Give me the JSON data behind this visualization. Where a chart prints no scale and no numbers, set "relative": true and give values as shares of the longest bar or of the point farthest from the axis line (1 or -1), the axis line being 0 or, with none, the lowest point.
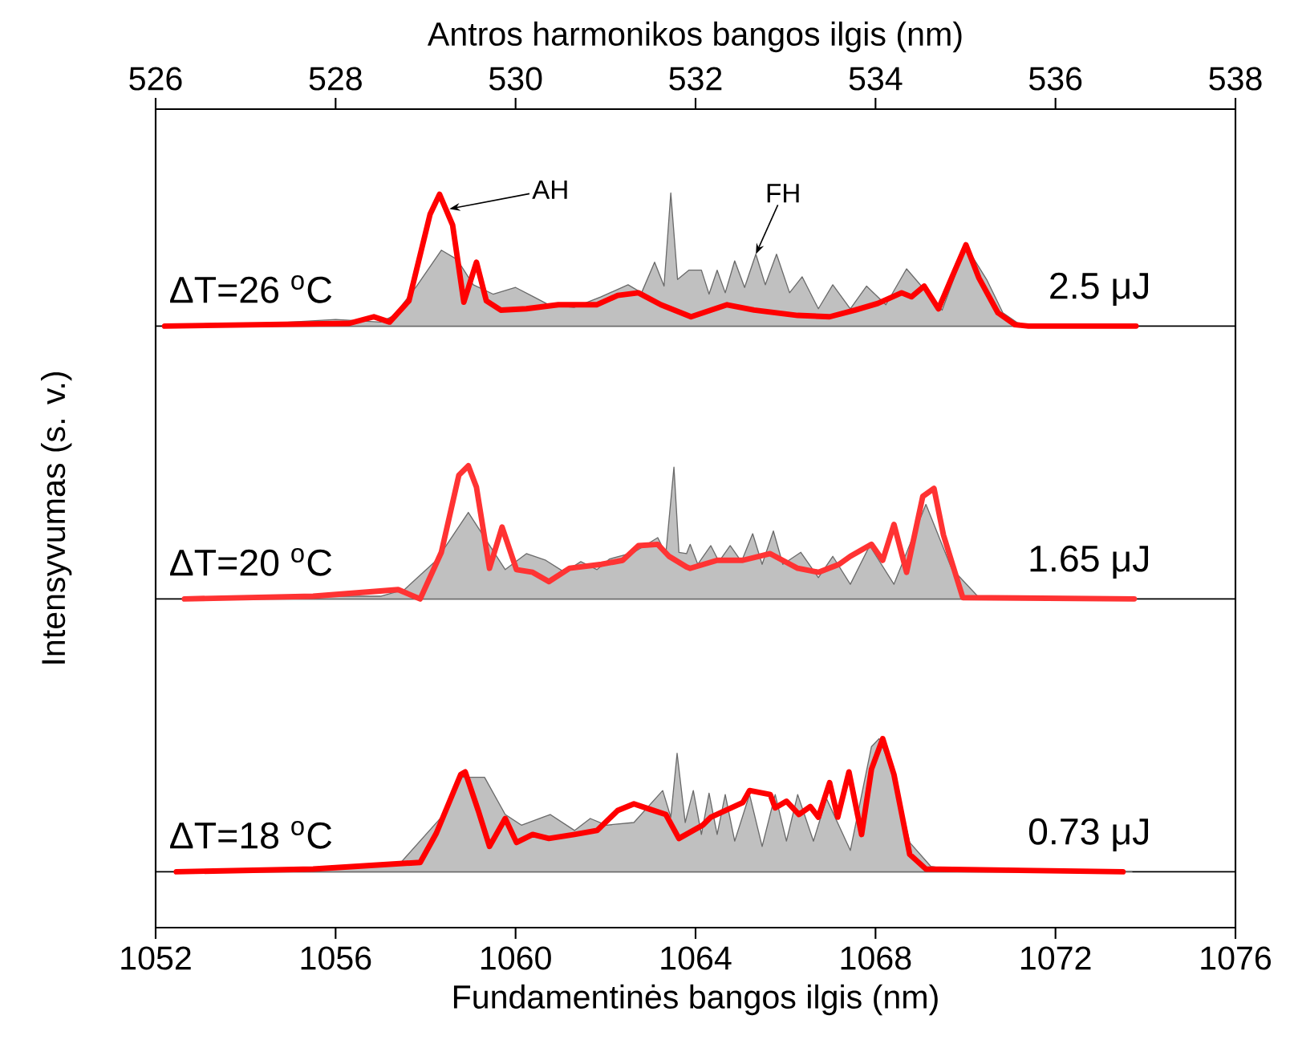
{
  "chart_data": [
    {
      "type": "area",
      "relative": true,
      "xlim": [
        1052,
        1076
      ],
      "x2lim": [
        526,
        538
      ],
      "x2ticks": [
        526,
        528,
        530,
        532,
        534,
        536,
        538
      ],
      "x2label": "Antros harmonikos bangos ilgis (nm)",
      "tick_labels": "x2",
      "annotations": [
        "ΔT=26 $^{o}$C",
        "2.5 μJ",
        {
          "text": "AH",
          "x": 1058.53,
          "y": 0.88
        },
        {
          "text": "FH",
          "x": 1065.34,
          "y": 0.54
        }
      ],
      "series": [
        {
          "color": "#c0c0c0",
          "x": [
            1053.5,
            1055,
            1056,
            1057,
            1057.3,
            1057.8,
            1058.35,
            1058.7,
            1059.06,
            1059.5,
            1060.0,
            1060.4,
            1060.74,
            1061.3,
            1061.9,
            1062.5,
            1062.8,
            1063.09,
            1063.3,
            1063.45,
            1063.6,
            1063.85,
            1064.13,
            1064.3,
            1064.48,
            1064.66,
            1064.87,
            1065.09,
            1065.34,
            1065.55,
            1065.8,
            1066.09,
            1066.37,
            1066.73,
            1067.05,
            1067.44,
            1067.8,
            1068.23,
            1068.69,
            1069.48,
            1070.01,
            1070.47,
            1070.83,
            1071.26,
            1073.7
          ],
          "values": [
            0,
            0.03,
            0.05,
            0.03,
            0.08,
            0.3,
            0.57,
            0.5,
            0.31,
            0.24,
            0.29,
            0.22,
            0.16,
            0.14,
            0.22,
            0.31,
            0.25,
            0.48,
            0.3,
            1.0,
            0.35,
            0.42,
            0.42,
            0.24,
            0.42,
            0.25,
            0.49,
            0.29,
            0.54,
            0.31,
            0.54,
            0.25,
            0.37,
            0.13,
            0.31,
            0.13,
            0.3,
            0.16,
            0.43,
            0.12,
            0.6,
            0.35,
            0.1,
            0,
            0
          ]
        },
        {
          "type": "line",
          "color": "#ff0000",
          "x": [
            1052.2,
            1056.3,
            1056.85,
            1057.2,
            1057.63,
            1058.1,
            1058.31,
            1058.6,
            1058.85,
            1059.13,
            1059.35,
            1059.67,
            1060.24,
            1060.95,
            1061.8,
            1062.27,
            1062.73,
            1063.23,
            1063.9,
            1064.7,
            1065.3,
            1066.27,
            1066.98,
            1067.55,
            1068.05,
            1068.58,
            1068.8,
            1069.08,
            1069.4,
            1069.69,
            1070.01,
            1070.3,
            1070.72,
            1071.1,
            1071.4,
            1073.79
          ],
          "values": [
            0,
            0.02,
            0.07,
            0.03,
            0.19,
            0.84,
            0.99,
            0.76,
            0.18,
            0.48,
            0.19,
            0.12,
            0.13,
            0.16,
            0.16,
            0.23,
            0.25,
            0.16,
            0.07,
            0.16,
            0.12,
            0.08,
            0.07,
            0.12,
            0.17,
            0.25,
            0.22,
            0.3,
            0.13,
            0.36,
            0.61,
            0.36,
            0.1,
            0.01,
            0,
            0
          ]
        }
      ]
    },
    {
      "type": "area",
      "relative": true,
      "xlim": [
        1052,
        1076
      ],
      "ylabel": "Intensyvumas (s. v.)",
      "tick_labels": false,
      "annotations": [
        "ΔT=20 $^{o}$C",
        "1.65 μJ"
      ],
      "series": [
        {
          "color": "#c0c0c0",
          "x": [
            1053.8,
            1056,
            1057,
            1057.53,
            1058.24,
            1058.95,
            1059.35,
            1059.77,
            1060.24,
            1060.67,
            1061.09,
            1061.45,
            1061.81,
            1062.09,
            1062.63,
            1063.16,
            1063.34,
            1063.52,
            1063.63,
            1063.8,
            1063.88,
            1064.05,
            1064.34,
            1064.52,
            1064.77,
            1065.02,
            1065.27,
            1065.48,
            1065.73,
            1065.94,
            1066.34,
            1066.73,
            1067.05,
            1067.44,
            1067.87,
            1068.41,
            1069.12,
            1069.69,
            1070.3,
            1071,
            1073.8
          ],
          "values": [
            0,
            0.02,
            0.02,
            0.07,
            0.29,
            0.65,
            0.44,
            0.22,
            0.34,
            0.29,
            0.2,
            0.28,
            0.22,
            0.3,
            0.35,
            0.46,
            0.34,
            0.99,
            0.35,
            0.34,
            0.41,
            0.26,
            0.4,
            0.28,
            0.4,
            0.28,
            0.49,
            0.26,
            0.51,
            0.26,
            0.35,
            0.16,
            0.32,
            0.11,
            0.4,
            0.11,
            0.71,
            0.23,
            0.01,
            0,
            0
          ]
        },
        {
          "type": "line",
          "color": "#ff3333",
          "x": [
            1052.64,
            1055.5,
            1057.39,
            1057.88,
            1058.35,
            1058.74,
            1058.95,
            1059.13,
            1059.42,
            1059.7,
            1060.02,
            1060.38,
            1060.74,
            1061.2,
            1061.91,
            1062.38,
            1062.73,
            1063.16,
            1063.41,
            1063.8,
            1063.88,
            1064.48,
            1065.05,
            1065.66,
            1066.27,
            1066.73,
            1067.19,
            1067.44,
            1067.91,
            1068.16,
            1068.41,
            1068.69,
            1069.05,
            1069.3,
            1069.51,
            1069.94,
            1073.75
          ],
          "values": [
            0,
            0.02,
            0.07,
            0,
            0.35,
            0.93,
            1.0,
            0.84,
            0.23,
            0.54,
            0.22,
            0.2,
            0.13,
            0.23,
            0.26,
            0.29,
            0.4,
            0.41,
            0.32,
            0.24,
            0.23,
            0.29,
            0.29,
            0.34,
            0.23,
            0.2,
            0.26,
            0.32,
            0.41,
            0.29,
            0.56,
            0.2,
            0.77,
            0.83,
            0.48,
            0.01,
            0
          ]
        }
      ]
    },
    {
      "type": "area",
      "relative": true,
      "xlim": [
        1052,
        1076
      ],
      "xticks": [
        1052,
        1056,
        1060,
        1064,
        1068,
        1072,
        1076
      ],
      "xlabel": "Fundamentinės bangos ilgis (nm)",
      "tick_labels": "x",
      "annotations": [
        "ΔT=18 $^{o}$C",
        "0.73 μJ"
      ],
      "series": [
        {
          "color": "#c0c0c0",
          "x": [
            1053.8,
            1056,
            1057.4,
            1058.35,
            1058.81,
            1059.31,
            1059.77,
            1060.13,
            1060.77,
            1061.31,
            1061.66,
            1062.02,
            1062.63,
            1063.27,
            1063.45,
            1063.59,
            1063.77,
            1063.95,
            1064.13,
            1064.3,
            1064.48,
            1064.66,
            1064.87,
            1065.2,
            1065.48,
            1065.77,
            1066.02,
            1066.27,
            1066.62,
            1066.91,
            1067.44,
            1067.91,
            1068.08,
            1068.41,
            1068.76,
            1069.23,
            1070,
            1073.7
          ],
          "values": [
            0,
            0.02,
            0.05,
            0.41,
            0.71,
            0.71,
            0.43,
            0.35,
            0.43,
            0.31,
            0.4,
            0.35,
            0.37,
            0.61,
            0.41,
            0.89,
            0.37,
            0.61,
            0.28,
            0.59,
            0.28,
            0.58,
            0.23,
            0.58,
            0.19,
            0.58,
            0.23,
            0.58,
            0.23,
            0.55,
            0.16,
            0.94,
            1.0,
            0.73,
            0.22,
            0.04,
            0,
            0
          ]
        },
        {
          "type": "line",
          "color": "#ff0000",
          "x": [
            1052.46,
            1055.5,
            1056.92,
            1057.88,
            1058.24,
            1058.78,
            1058.88,
            1059.17,
            1059.42,
            1059.77,
            1060.02,
            1060.38,
            1060.74,
            1061.31,
            1061.81,
            1062.27,
            1062.63,
            1062.98,
            1063.34,
            1063.63,
            1064.16,
            1064.34,
            1065.05,
            1065.2,
            1065.66,
            1065.77,
            1066.02,
            1066.3,
            1066.55,
            1066.73,
            1066.98,
            1067.16,
            1067.41,
            1067.69,
            1067.91,
            1068.16,
            1068.41,
            1068.76,
            1069.12,
            1073.5
          ],
          "values": [
            0,
            0.02,
            0.05,
            0.07,
            0.29,
            0.73,
            0.75,
            0.46,
            0.19,
            0.4,
            0.22,
            0.28,
            0.25,
            0.28,
            0.31,
            0.46,
            0.51,
            0.47,
            0.43,
            0.25,
            0.35,
            0.41,
            0.52,
            0.61,
            0.58,
            0.48,
            0.53,
            0.43,
            0.49,
            0.41,
            0.67,
            0.41,
            0.75,
            0.28,
            0.77,
            1.0,
            0.73,
            0.13,
            0.02,
            0
          ]
        }
      ]
    }
  ]
}
